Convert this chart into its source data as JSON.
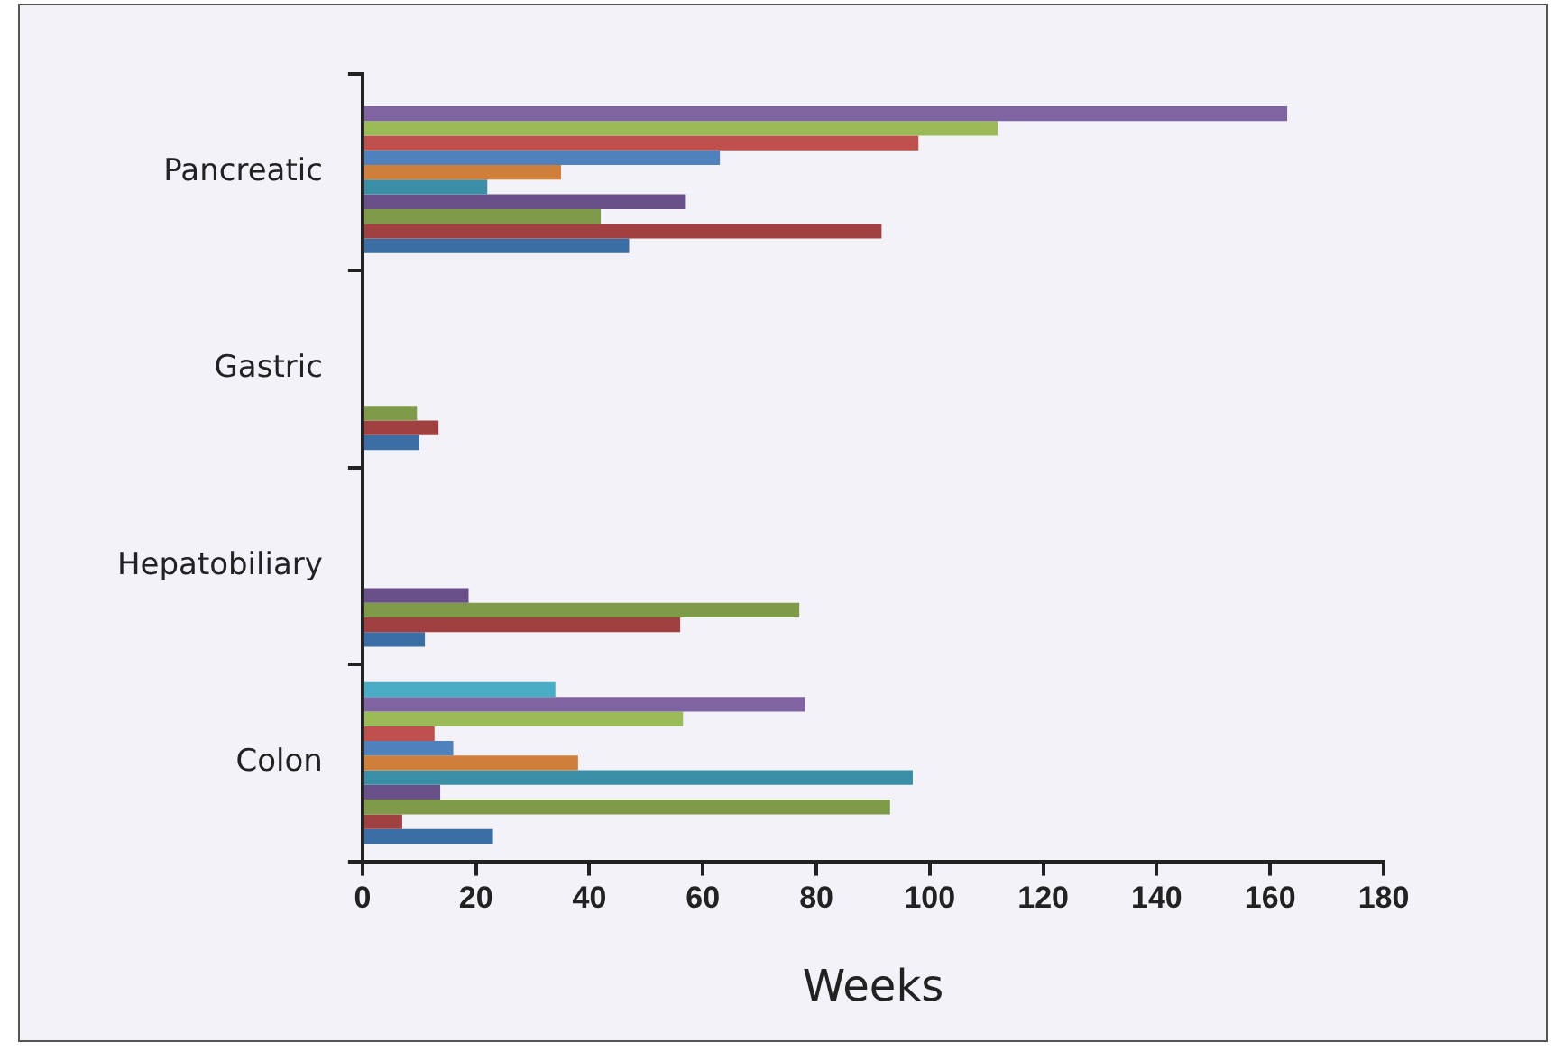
{
  "chart_data": {
    "type": "bar",
    "orientation": "horizontal",
    "xlabel": "Weeks",
    "categories": [
      "Pancreatic",
      "Gastric",
      "Hepatobiliary",
      "Colon"
    ],
    "series": [
      {
        "color": "#4bacc6",
        "values": [
          null,
          null,
          null,
          34
        ]
      },
      {
        "color": "#8064a2",
        "values": [
          163,
          null,
          null,
          78
        ]
      },
      {
        "color": "#9bbb59",
        "values": [
          112,
          null,
          null,
          56.5
        ]
      },
      {
        "color": "#c0504d",
        "values": [
          98,
          null,
          null,
          12.7
        ]
      },
      {
        "color": "#4f81bd",
        "values": [
          63,
          null,
          null,
          16
        ]
      },
      {
        "color": "#d07f3a",
        "values": [
          35,
          null,
          null,
          38
        ]
      },
      {
        "color": "#3a8ea5",
        "values": [
          22,
          null,
          null,
          97
        ]
      },
      {
        "color": "#6a5088",
        "values": [
          57,
          null,
          18.7,
          13.7
        ]
      },
      {
        "color": "#7f9a48",
        "values": [
          42,
          9.6,
          77,
          93
        ]
      },
      {
        "color": "#a04040",
        "values": [
          91.5,
          13.4,
          56,
          7
        ]
      },
      {
        "color": "#3a6ea5",
        "values": [
          47,
          10,
          11,
          23
        ]
      }
    ],
    "xlim": [
      0,
      180
    ],
    "xticks": [
      0,
      20,
      40,
      60,
      80,
      100,
      120,
      140,
      160,
      180
    ],
    "grid": false,
    "legend": false
  }
}
